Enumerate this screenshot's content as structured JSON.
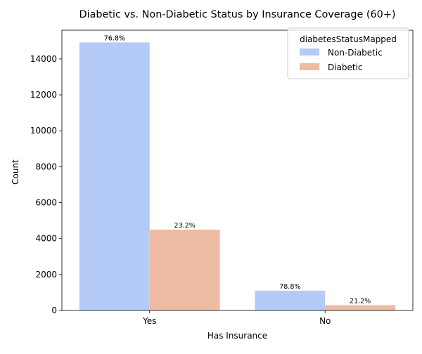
{
  "chart_data": {
    "type": "bar",
    "title": "Diabetic vs. Non-Diabetic Status by Insurance Coverage (60+)",
    "xlabel": "Has Insurance",
    "ylabel": "Count",
    "categories": [
      "Yes",
      "No"
    ],
    "ylim": [
      0,
      15600
    ],
    "yticks": [
      0,
      2000,
      4000,
      6000,
      8000,
      10000,
      12000,
      14000
    ],
    "grid": false,
    "legend": {
      "title": "diabetesStatusMapped",
      "placement": "top-right"
    },
    "series": [
      {
        "name": "Non-Diabetic",
        "color": "#b4cbf7",
        "values": [
          14920,
          1100
        ],
        "labels": [
          "76.8%",
          "78.8%"
        ]
      },
      {
        "name": "Diabetic",
        "color": "#eebba5",
        "values": [
          4500,
          296
        ],
        "labels": [
          "23.2%",
          "21.2%"
        ]
      }
    ]
  }
}
